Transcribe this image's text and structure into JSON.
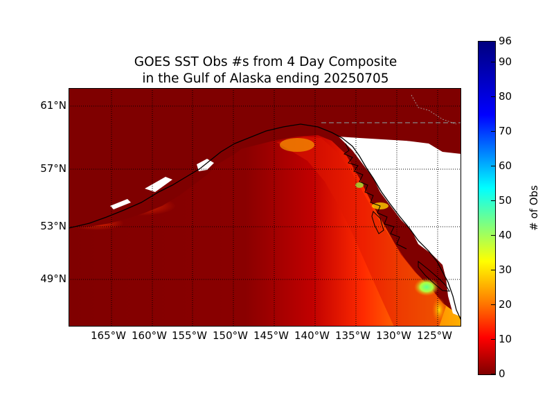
{
  "title": {
    "line1": "GOES SST Obs #s from 4 Day Composite",
    "line2": "in the Gulf of Alaska ending 20250705"
  },
  "map": {
    "latitude_labels": [
      "61°N",
      "57°N",
      "53°N",
      "49°N"
    ],
    "longitude_labels": [
      "165°W",
      "160°W",
      "155°W",
      "150°W",
      "145°W",
      "140°W",
      "135°W",
      "130°W",
      "125°W"
    ]
  },
  "colorbar": {
    "label": "# of Obs",
    "ticks": [
      "0",
      "10",
      "20",
      "30",
      "40",
      "50",
      "60",
      "70",
      "80",
      "90",
      "96"
    ],
    "range": [
      0,
      96
    ],
    "colormap": "jet_reversed",
    "colors": [
      "#7f0000",
      "#ff0000",
      "#ff7f00",
      "#ffff00",
      "#7fff7f",
      "#00ffff",
      "#007fff",
      "#0000ff",
      "#00007f"
    ]
  },
  "colors": {
    "land": "#7f0000",
    "no_data": "#ffffff",
    "coastline": "#000000",
    "gridlines": "#000000"
  }
}
